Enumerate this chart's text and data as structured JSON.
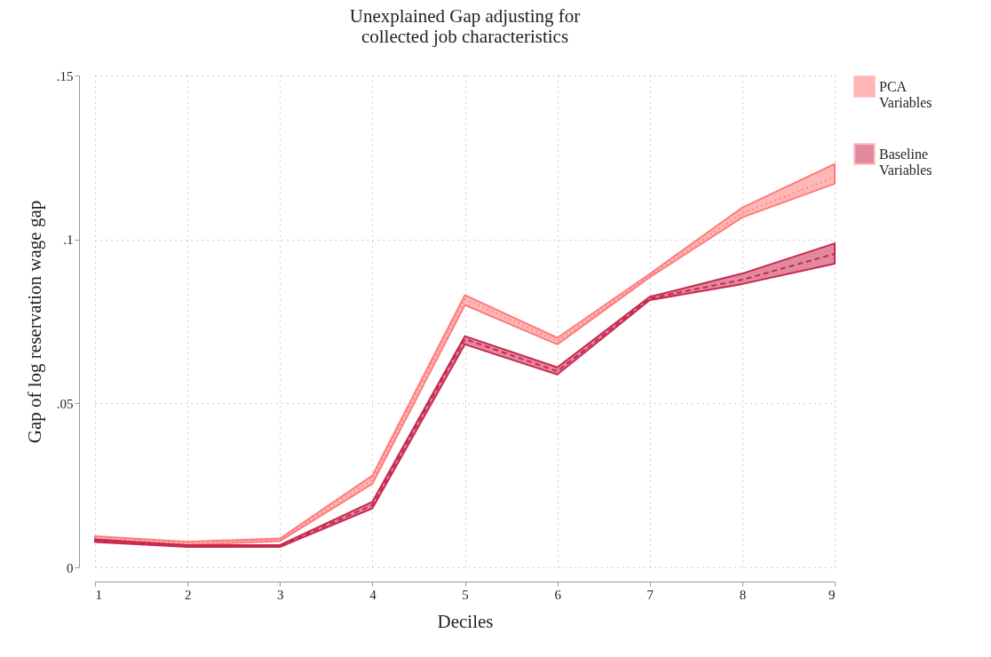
{
  "chart_data": {
    "type": "line",
    "title": "Unexplained Gap adjusting for collected job characteristics",
    "xlabel": "Deciles",
    "ylabel": "Gap of log reservation wage gap",
    "x": [
      1,
      2,
      3,
      4,
      5,
      6,
      7,
      8,
      9
    ],
    "xlim": [
      1,
      9
    ],
    "xticks": [
      1,
      2,
      3,
      4,
      5,
      6,
      7,
      8,
      9
    ],
    "ylim": [
      0,
      0.15
    ],
    "yticks": [
      0,
      {
        "value": 0.05,
        "label": ".05"
      },
      {
        "value": 0.1,
        "label": ".1"
      },
      {
        "value": 0.15,
        "label": ".15"
      }
    ],
    "grid": true,
    "legend": "right",
    "marker": "none",
    "series": [
      {
        "name": "PCA Variables",
        "color": "#ff7b7b",
        "line_style": "dotted",
        "values": [
          0.0089,
          0.0073,
          0.0084,
          0.0268,
          0.0818,
          0.069,
          0.089,
          0.108,
          0.119
        ],
        "lower": [
          0.008,
          0.0068,
          0.008,
          0.0255,
          0.08,
          0.068,
          0.0885,
          0.1067,
          0.117
        ],
        "upper": [
          0.0095,
          0.0078,
          0.0088,
          0.028,
          0.083,
          0.07,
          0.0895,
          0.1097,
          0.123
        ]
      },
      {
        "name": "Baseline Variables",
        "color": "#c8284f",
        "line_style": "dashed",
        "values": [
          0.0081,
          0.0065,
          0.0065,
          0.019,
          0.0696,
          0.0598,
          0.082,
          0.0877,
          0.0956
        ],
        "lower": [
          0.0077,
          0.0062,
          0.0062,
          0.018,
          0.068,
          0.0588,
          0.0815,
          0.0864,
          0.0926
        ],
        "upper": [
          0.0085,
          0.0068,
          0.0068,
          0.02,
          0.0705,
          0.061,
          0.0825,
          0.0896,
          0.0988
        ]
      }
    ]
  }
}
